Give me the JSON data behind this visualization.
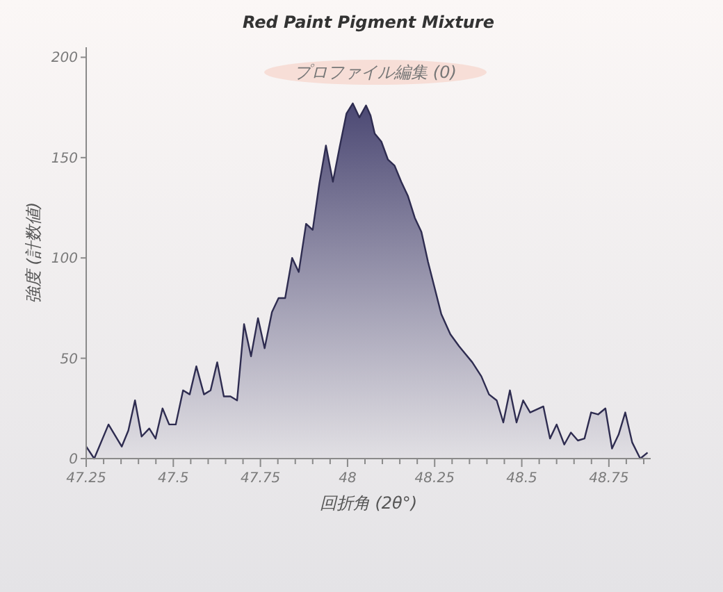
{
  "chart_data": {
    "type": "area",
    "title": "Red Paint Pigment Mixture",
    "xlabel": "回折角 (2θ°)",
    "ylabel": "強度 (計数値)",
    "annotations": [
      "プロファイル編集 (0)"
    ],
    "xlim": [
      47.25,
      48.87
    ],
    "ylim": [
      0,
      205
    ],
    "xticks": [
      47.25,
      {
        "value": 47.3,
        "label": null
      },
      {
        "value": 47.35,
        "label": null
      },
      {
        "value": 47.4,
        "label": null
      },
      {
        "value": 47.45,
        "label": null
      },
      47.5,
      {
        "value": 47.55,
        "label": null
      },
      {
        "value": 47.6,
        "label": null
      },
      {
        "value": 47.65,
        "label": null
      },
      {
        "value": 47.7,
        "label": null
      },
      47.75,
      {
        "value": 47.8,
        "label": null
      },
      {
        "value": 47.85,
        "label": null
      },
      {
        "value": 47.9,
        "label": null
      },
      {
        "value": 47.95,
        "label": null
      },
      48,
      {
        "value": 48.05,
        "label": null
      },
      {
        "value": 48.1,
        "label": null
      },
      {
        "value": 48.15,
        "label": null
      },
      {
        "value": 48.2,
        "label": null
      },
      48.25,
      {
        "value": 48.3,
        "label": null
      },
      {
        "value": 48.35,
        "label": null
      },
      {
        "value": 48.4,
        "label": null
      },
      {
        "value": 48.45,
        "label": null
      },
      48.5,
      {
        "value": 48.55,
        "label": null
      },
      {
        "value": 48.6,
        "label": null
      },
      {
        "value": 48.65,
        "label": null
      },
      {
        "value": 48.7,
        "label": null
      },
      48.75,
      {
        "value": 48.8,
        "label": null
      },
      {
        "value": 48.85,
        "label": null
      }
    ],
    "yticks": [
      0,
      50,
      100,
      150,
      200
    ],
    "grid": false,
    "series": [
      {
        "color": "#4b4873",
        "x": [
          47.25,
          47.273,
          47.314,
          47.352,
          47.371,
          47.39,
          47.409,
          47.431,
          47.449,
          47.469,
          47.488,
          47.507,
          47.528,
          47.547,
          47.566,
          47.588,
          47.607,
          47.626,
          47.645,
          47.664,
          47.683,
          47.703,
          47.723,
          47.743,
          47.762,
          47.783,
          47.802,
          47.821,
          47.841,
          47.86,
          47.881,
          47.9,
          47.919,
          47.938,
          47.958,
          47.977,
          47.997,
          48.015,
          48.034,
          48.053,
          48.066,
          48.078,
          48.097,
          48.116,
          48.135,
          48.154,
          48.173,
          48.193,
          48.212,
          48.231,
          48.25,
          48.269,
          48.295,
          48.32,
          48.358,
          48.384,
          48.406,
          48.428,
          48.447,
          48.466,
          48.485,
          48.504,
          48.524,
          48.562,
          48.581,
          48.6,
          48.622,
          48.641,
          48.661,
          48.68,
          48.699,
          48.719,
          48.74,
          48.759,
          48.778,
          48.797,
          48.817,
          48.84,
          48.861
        ],
        "values": [
          6,
          0,
          17,
          6,
          14,
          29,
          11,
          15,
          10,
          25,
          17,
          17,
          34,
          32,
          46,
          32,
          34,
          48,
          31,
          31,
          29,
          67,
          51,
          70,
          55,
          73,
          80,
          80,
          100,
          93,
          117,
          114,
          137,
          156,
          138,
          155,
          172,
          177,
          170,
          176,
          171,
          162,
          158,
          149,
          146,
          138,
          131,
          120,
          113,
          98,
          85,
          72,
          62,
          56,
          48,
          41,
          32,
          29,
          18,
          34,
          18,
          29,
          23,
          26,
          10,
          17,
          7,
          13,
          9,
          10,
          23,
          22,
          25,
          5,
          12,
          23,
          8,
          0,
          3
        ]
      }
    ]
  }
}
